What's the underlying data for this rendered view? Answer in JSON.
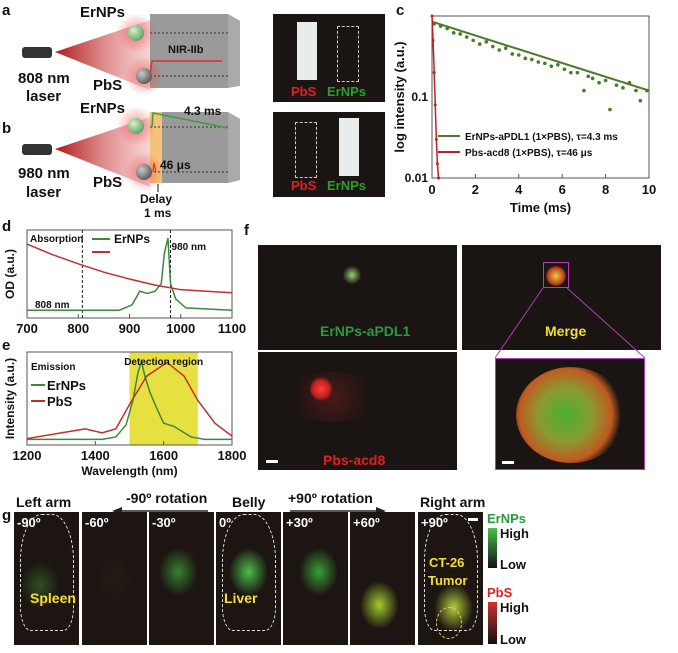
{
  "panel_labels": [
    "a",
    "b",
    "c",
    "d",
    "e",
    "f",
    "g"
  ],
  "a": {
    "ernps": "ErNPs",
    "pbs": "PbS",
    "laser_wl": "808 nm",
    "laser": "laser",
    "signal": "NIR-IIb",
    "img_labels": [
      "PbS",
      "ErNPs"
    ]
  },
  "b": {
    "ernps": "ErNPs",
    "pbs": "PbS",
    "laser_wl": "980 nm",
    "laser": "laser",
    "er_lifetime": "4.3 ms",
    "pbs_lifetime": "46 μs",
    "delay": "Delay",
    "delay_val": "1 ms",
    "img_labels": [
      "PbS",
      "ErNPs"
    ]
  },
  "colors": {
    "green": "#3a9a3a",
    "red": "#d02020",
    "yellow": "#f5e02a",
    "gray": "#9a9a9a",
    "orange": "#f5c27a"
  },
  "chart_data": [
    {
      "panel": "c",
      "type": "scatter",
      "xlabel": "Time (ms)",
      "ylabel": "log intensity (a.u.)",
      "xlim": [
        0,
        10
      ],
      "ylim": [
        0.01,
        1
      ],
      "yscale": "log",
      "xticks": [
        "0",
        "2",
        "4",
        "6",
        "8",
        "10"
      ],
      "yticks": [
        "0.01",
        "0.1"
      ],
      "legend_placement": "bottom-right",
      "series": [
        {
          "name": "ErNPs-aPDL1 (1×PBS), τ=4.3 ms",
          "color": "#4a7a2a",
          "fit_x": [
            0,
            10
          ],
          "fit_y": [
            0.85,
            0.12
          ],
          "x": [
            0.1,
            0.4,
            0.7,
            1,
            1.3,
            1.6,
            1.9,
            2.2,
            2.5,
            2.8,
            3.1,
            3.4,
            3.7,
            4,
            4.3,
            4.6,
            4.9,
            5.2,
            5.5,
            5.8,
            6.1,
            6.4,
            6.7,
            7,
            7.2,
            7.4,
            7.7,
            8,
            8.2,
            8.5,
            8.8,
            9.1,
            9.4,
            9.6,
            9.9
          ],
          "y": [
            0.8,
            0.75,
            0.7,
            0.62,
            0.6,
            0.55,
            0.5,
            0.45,
            0.48,
            0.42,
            0.38,
            0.4,
            0.34,
            0.33,
            0.3,
            0.29,
            0.27,
            0.26,
            0.24,
            0.25,
            0.22,
            0.2,
            0.2,
            0.12,
            0.18,
            0.17,
            0.15,
            0.16,
            0.07,
            0.14,
            0.13,
            0.15,
            0.12,
            0.09,
            0.12
          ]
        },
        {
          "name": "Pbs-acd8 (1×PBS), τ=46 μs",
          "color": "#c02020",
          "x": [
            0,
            0.05,
            0.1,
            0.15,
            0.2,
            0.25,
            0.3
          ],
          "y": [
            1,
            0.5,
            0.2,
            0.08,
            0.03,
            0.015,
            0.01
          ]
        }
      ]
    },
    {
      "panel": "d",
      "type": "line",
      "ylabel": "OD (a.u.)",
      "xlim": [
        700,
        1100
      ],
      "xticks": [
        "700",
        "800",
        "900",
        "1000",
        "1100"
      ],
      "annotations": [
        "Absorption",
        "808 nm",
        "980 nm"
      ],
      "vlines": [
        808,
        980
      ],
      "legend_placement": "top-left",
      "series": [
        {
          "name": "ErNPs",
          "color": "#3a8a3a",
          "x": [
            700,
            880,
            905,
            920,
            935,
            950,
            962,
            968,
            975,
            980,
            990,
            1010,
            1100
          ],
          "y": [
            0.05,
            0.05,
            0.12,
            0.3,
            0.27,
            0.3,
            0.4,
            0.8,
            1.0,
            0.4,
            0.2,
            0.08,
            0.05
          ]
        },
        {
          "name": "",
          "color": "#c03030",
          "x": [
            700,
            750,
            800,
            850,
            900,
            950,
            1000,
            1050,
            1100
          ],
          "y": [
            0.92,
            0.78,
            0.66,
            0.55,
            0.46,
            0.38,
            0.32,
            0.3,
            0.28
          ]
        }
      ]
    },
    {
      "panel": "e",
      "type": "line",
      "xlabel": "Wavelength (nm)",
      "ylabel": "Intensity (a.u.)",
      "xlim": [
        1200,
        1800
      ],
      "xticks": [
        "1200",
        "1400",
        "1600",
        "1800"
      ],
      "annotations": [
        "Emission",
        "Detection region"
      ],
      "shaded_region": [
        1500,
        1700
      ],
      "legend_placement": "top-left",
      "series": [
        {
          "name": "ErNPs",
          "color": "#3a8a3a",
          "x": [
            1200,
            1420,
            1460,
            1490,
            1510,
            1525,
            1535,
            1545,
            1560,
            1580,
            1600,
            1630,
            1680,
            1720,
            1800
          ],
          "y": [
            0.02,
            0.02,
            0.05,
            0.2,
            0.5,
            0.85,
            0.98,
            0.8,
            0.6,
            0.4,
            0.22,
            0.18,
            0.05,
            0.02,
            0.02
          ]
        },
        {
          "name": "PbS",
          "color": "#c03030",
          "x": [
            1200,
            1300,
            1370,
            1420,
            1460,
            1500,
            1550,
            1610,
            1660,
            1700,
            1750,
            1800
          ],
          "y": [
            0.03,
            0.1,
            0.15,
            0.1,
            0.15,
            0.45,
            0.8,
            0.97,
            0.8,
            0.5,
            0.22,
            0.06
          ]
        }
      ]
    }
  ],
  "f": {
    "labels": [
      "ErNPs-aPDL1",
      "Merge",
      "Pbs-acd8"
    ]
  },
  "g": {
    "directions": [
      "-90º rotation",
      "+90º rotation"
    ],
    "views": [
      "Left arm",
      "Belly",
      "Right arm"
    ],
    "angles": [
      "-90º",
      "-60º",
      "-30º",
      "0º",
      "+30º",
      "+60º",
      "+90º"
    ],
    "organs": [
      "Spleen",
      "Liver",
      "CT-26",
      "Tumor"
    ],
    "colorbars": [
      {
        "name": "ErNPs",
        "high": "High",
        "low": "Low"
      },
      {
        "name": "PbS",
        "high": "High",
        "low": "Low"
      }
    ]
  }
}
